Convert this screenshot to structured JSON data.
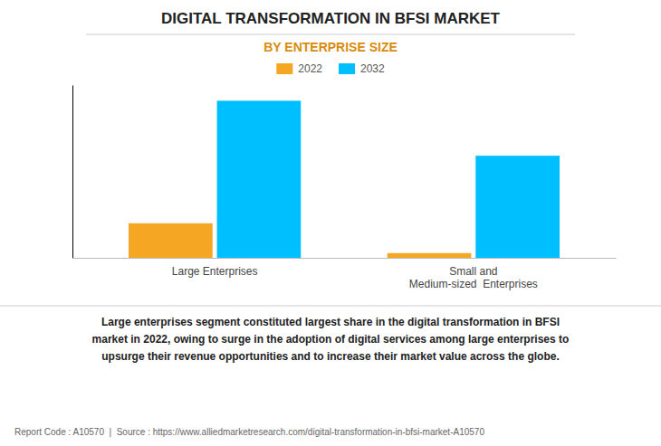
{
  "chart_data": {
    "type": "bar",
    "title": "DIGITAL TRANSFORMATION IN BFSI MARKET",
    "subtitle": "BY ENTERPRISE SIZE",
    "categories": [
      "Large Enterprises",
      "Small and\nMedium-sized  Enterprises"
    ],
    "series": [
      {
        "name": "2022",
        "color": "#F5A623",
        "values": [
          22,
          3
        ]
      },
      {
        "name": "2032",
        "color": "#00BFFF",
        "values": [
          100,
          65
        ]
      }
    ],
    "ylim": [
      0,
      110
    ],
    "yticks": [],
    "grid": false,
    "tick_labels": "x",
    "legend": "top",
    "annotations": [
      "Large enterprises segment constituted largest share in the digital transformation in BFSI\nmarket in 2022, owing to surge in the adoption of digital services among large enterprises to\nupsurge their revenue opportunities and to increase their market value across the globe.",
      "Report Code : A10570  |  Source : https://www.alliedmarketresearch.com/digital-transformation-in-bfsi-market-A10570"
    ]
  }
}
